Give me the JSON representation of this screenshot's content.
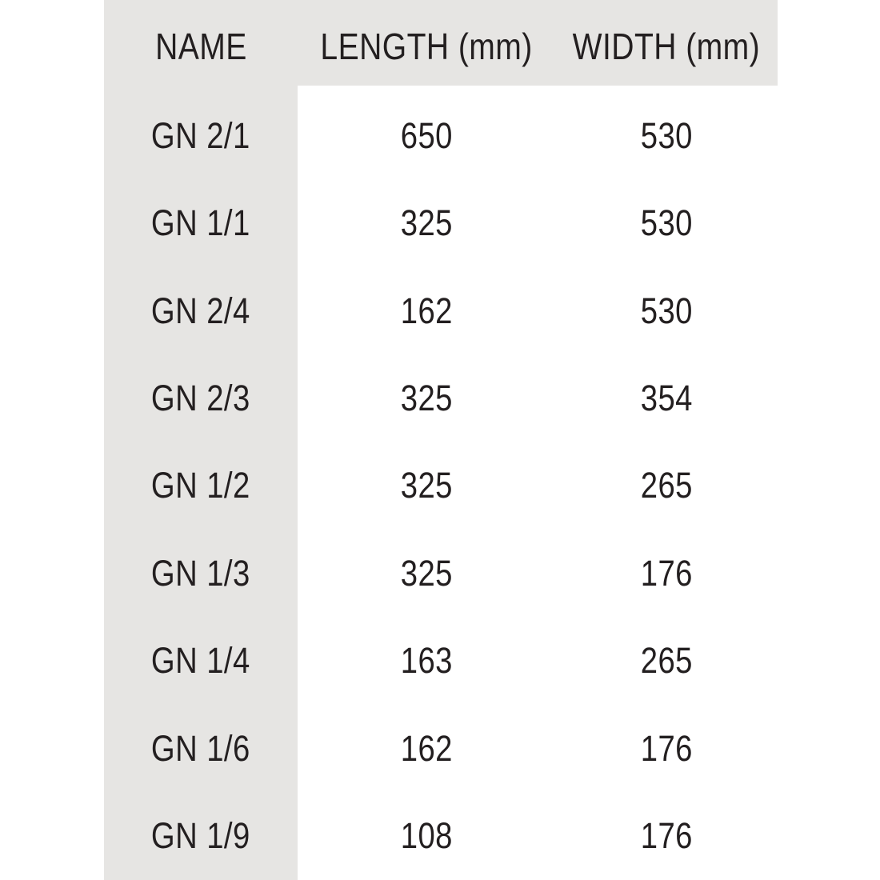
{
  "colors": {
    "page_bg": "#ffffff",
    "band": "#e6e5e3",
    "text": "#231f20"
  },
  "chart_data": {
    "type": "table",
    "columns": [
      "NAME",
      "LENGTH (mm)",
      "WIDTH (mm)"
    ],
    "rows": [
      [
        "GN 2/1",
        650,
        530
      ],
      [
        "GN 1/1",
        325,
        530
      ],
      [
        "GN 2/4",
        162,
        530
      ],
      [
        "GN 2/3",
        325,
        354
      ],
      [
        "GN 1/2",
        325,
        265
      ],
      [
        "GN 1/3",
        325,
        176
      ],
      [
        "GN 1/4",
        163,
        265
      ],
      [
        "GN 1/6",
        162,
        176
      ],
      [
        "GN 1/9",
        108,
        176
      ]
    ]
  }
}
